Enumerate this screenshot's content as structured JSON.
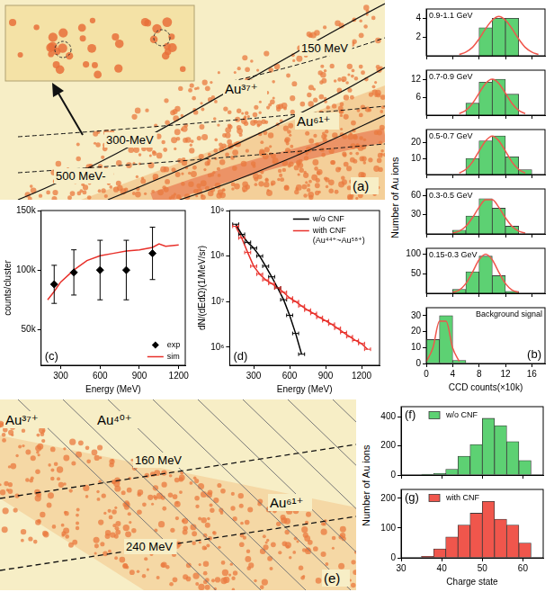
{
  "chart_data": [
    {
      "type": "histogram",
      "title": "0.9-1.1 GeV",
      "bins": [
        8,
        10,
        12,
        14
      ],
      "values": [
        3,
        4,
        4
      ],
      "color": "#5dd173",
      "fit": {
        "x": [
          5,
          6,
          7,
          8,
          9,
          10,
          11,
          12,
          13,
          14,
          15,
          16,
          17
        ],
        "values": [
          0.14,
          0.4,
          0.9,
          1.8,
          2.9,
          3.8,
          4.2,
          3.8,
          2.9,
          1.8,
          0.9,
          0.4,
          0.14
        ],
        "color": "#f0564c"
      },
      "xlim": [
        0,
        18
      ],
      "xticks": [
        0,
        4,
        8,
        12,
        16
      ],
      "ylim": [
        0,
        5
      ],
      "yticks": [
        2,
        4
      ],
      "tick_labels": "y"
    },
    {
      "type": "histogram",
      "title": "0.7-0.9 GeV",
      "bins": [
        6,
        8,
        10,
        12,
        14
      ],
      "values": [
        4,
        11,
        12,
        7
      ],
      "color": "#5dd173",
      "fit": {
        "x": [
          5,
          6,
          7,
          8,
          9,
          10,
          11,
          12,
          13,
          14,
          15
        ],
        "values": [
          0.5,
          1.6,
          3.9,
          7.3,
          10.6,
          12,
          10.6,
          7.3,
          3.9,
          1.6,
          0.5
        ],
        "color": "#f0564c"
      },
      "xlim": [
        0,
        18
      ],
      "xticks": [
        0,
        4,
        8,
        12,
        16
      ],
      "ylim": [
        0,
        15
      ],
      "yticks": [
        6,
        12
      ],
      "tick_labels": "y"
    },
    {
      "type": "histogram",
      "title": "0.5-0.7 GeV",
      "bins": [
        6,
        8,
        10,
        12,
        14,
        16
      ],
      "values": [
        10,
        21,
        24,
        11,
        3
      ],
      "color": "#5dd173",
      "fit": {
        "x": [
          5,
          6,
          7,
          8,
          9,
          10,
          11,
          12,
          13,
          14,
          15
        ],
        "values": [
          1,
          3.2,
          7.8,
          14.6,
          21,
          24,
          21,
          14.6,
          7.8,
          3.2,
          1
        ],
        "color": "#f0564c"
      },
      "xlim": [
        0,
        18
      ],
      "xticks": [
        0,
        4,
        8,
        12,
        16
      ],
      "ylim": [
        0,
        28
      ],
      "yticks": [
        10,
        20
      ],
      "tick_labels": "y"
    },
    {
      "type": "histogram",
      "title": "0.3-0.5 GeV",
      "bins": [
        4,
        6,
        8,
        10,
        12,
        14
      ],
      "values": [
        6,
        28,
        55,
        40,
        12
      ],
      "color": "#5dd173",
      "fit": {
        "x": [
          4,
          5,
          6,
          7,
          8,
          9,
          10,
          11,
          12,
          13,
          14,
          15
        ],
        "values": [
          1.2,
          4.4,
          11.9,
          25.2,
          41.5,
          53.3,
          53.3,
          41.5,
          25.2,
          11.9,
          4.4,
          1.2
        ],
        "color": "#f0564c"
      },
      "xlim": [
        0,
        18
      ],
      "xticks": [
        0,
        4,
        8,
        12,
        16
      ],
      "ylim": [
        0,
        70
      ],
      "yticks": [
        30,
        60
      ],
      "tick_labels": "y"
    },
    {
      "type": "histogram",
      "title": "0.15-0.3 GeV",
      "bins": [
        4,
        6,
        8,
        10,
        12,
        14
      ],
      "values": [
        10,
        55,
        95,
        45,
        5
      ],
      "color": "#5dd173",
      "fit": {
        "x": [
          4,
          5,
          6,
          7,
          8,
          9,
          10,
          11,
          12,
          13,
          14
        ],
        "values": [
          2.1,
          8.5,
          25,
          54,
          85.7,
          100,
          85.7,
          54,
          25,
          8.5,
          2.1
        ],
        "color": "#f0564c"
      },
      "xlim": [
        0,
        18
      ],
      "xticks": [
        0,
        4,
        8,
        12,
        16
      ],
      "ylim": [
        0,
        115
      ],
      "yticks": [
        50,
        100
      ],
      "tick_labels": "y"
    },
    {
      "type": "histogram",
      "title": "Background signal",
      "panel_label": "(b)",
      "bins": [
        0,
        2,
        4,
        6
      ],
      "values": [
        15,
        30,
        2
      ],
      "color": "#5dd173",
      "fit": {
        "x": [
          0,
          1,
          2,
          3,
          4,
          5
        ],
        "values": [
          1.3,
          9.7,
          26.5,
          26.5,
          9.7,
          1.3
        ],
        "color": "#f0564c"
      },
      "xlabel": "CCD counts(×10k)",
      "ylabel": "Number of Au ions",
      "xlim": [
        0,
        18
      ],
      "xticks": [
        0,
        4,
        8,
        12,
        16
      ],
      "ylim": [
        0,
        35
      ],
      "yticks": [
        0,
        10,
        20,
        30
      ]
    },
    {
      "type": "scatter",
      "panel_label": "(c)",
      "xlabel": "Energy (MeV)",
      "ylabel": "counts/cluster",
      "xlim": [
        150,
        1250
      ],
      "xticks": [
        300,
        600,
        900,
        1200
      ],
      "ylim": [
        20000,
        150000
      ],
      "yticks": [
        {
          "value": 50000,
          "label": "50k"
        },
        {
          "value": 100000,
          "label": "100k"
        },
        {
          "value": 150000,
          "label": "150k"
        }
      ],
      "legend": "lower right",
      "series": [
        {
          "name": "exp",
          "type": "scatter",
          "marker": "diamond",
          "color": "#000000",
          "x": [
            250,
            400,
            600,
            800,
            1000
          ],
          "values": [
            88000,
            98000,
            100000,
            100000,
            114000
          ],
          "yerr": [
            16000,
            19000,
            25000,
            25000,
            22000
          ]
        },
        {
          "name": "sim",
          "type": "line",
          "color": "#e8302a",
          "x": [
            200,
            250,
            300,
            400,
            500,
            600,
            700,
            800,
            900,
            1000,
            1050,
            1100,
            1200
          ],
          "values": [
            75000,
            82000,
            90000,
            100000,
            108000,
            112000,
            114000,
            116000,
            117000,
            119000,
            122000,
            120000,
            121000
          ]
        }
      ]
    },
    {
      "type": "line",
      "panel_label": "(d)",
      "log": "y",
      "xlabel": "Energy (MeV)",
      "ylabel": "dN/(dEdΩ)(1/MeV/sr)",
      "xlim": [
        100,
        1350
      ],
      "xticks": [
        300,
        600,
        900,
        1200
      ],
      "ylim": [
        400000,
        1000000000.0
      ],
      "yticks": [
        {
          "value": 1000000.0,
          "label": "10⁶"
        },
        {
          "value": 10000000.0,
          "label": "10⁷"
        },
        {
          "value": 100000000.0,
          "label": "10⁸"
        },
        {
          "value": 1000000000.0,
          "label": "10⁹"
        }
      ],
      "legend": "upper right",
      "series": [
        {
          "name": "w/o CNF",
          "color": "#000000",
          "x": [
            150,
            200,
            250,
            300,
            350,
            400,
            450,
            500,
            550,
            600,
            650,
            700
          ],
          "values": [
            500000000.0,
            300000000.0,
            200000000.0,
            150000000.0,
            100000000.0,
            60000000.0,
            35000000.0,
            20000000.0,
            11000000.0,
            5000000.0,
            2000000.0,
            700000.0
          ],
          "xerr": [
            25,
            25,
            25,
            25,
            25,
            25,
            25,
            25,
            25,
            25,
            25,
            25
          ]
        },
        {
          "name": "with CNF (Au⁴⁴⁺~Au⁵⁸⁺)",
          "color": "#e8302a",
          "x": [
            150,
            200,
            250,
            300,
            350,
            400,
            450,
            500,
            550,
            600,
            650,
            700,
            750,
            800,
            850,
            900,
            950,
            1000,
            1050,
            1100,
            1150,
            1200,
            1250
          ],
          "values": [
            450000000.0,
            250000000.0,
            120000000.0,
            60000000.0,
            40000000.0,
            30000000.0,
            25000000.0,
            20000000.0,
            16000000.0,
            12000000.0,
            10000000.0,
            8000000.0,
            6500000.0,
            5500000.0,
            4500000.0,
            3800000.0,
            3200000.0,
            2600000.0,
            2100000.0,
            1700000.0,
            1400000.0,
            1200000.0,
            900000.0
          ],
          "xerr": [
            25,
            25,
            25,
            25,
            25,
            25,
            25,
            25,
            25,
            25,
            25,
            25,
            25,
            25,
            25,
            25,
            25,
            25,
            25,
            25,
            25,
            25,
            25
          ]
        }
      ]
    },
    {
      "type": "histogram",
      "panel_label": "(f)",
      "bins": [
        35,
        38,
        41,
        44,
        47,
        50,
        53,
        56,
        59,
        62
      ],
      "series": [
        {
          "name": "w/o CNF",
          "color": "#5dd173",
          "values": [
            5,
            10,
            40,
            130,
            210,
            390,
            340,
            230,
            100
          ]
        }
      ],
      "legend": "upper left",
      "xlim": [
        30,
        65
      ],
      "xticks": [
        30,
        40,
        50,
        60
      ],
      "ylim": [
        0,
        470
      ],
      "yticks": [
        0,
        200,
        400
      ],
      "tick_labels": "y"
    },
    {
      "type": "histogram",
      "panel_label": "(g)",
      "bins": [
        35,
        38,
        41,
        44,
        47,
        50,
        53,
        56,
        59,
        62
      ],
      "series": [
        {
          "name": "with CNF",
          "color": "#f0564c",
          "values": [
            5,
            30,
            70,
            110,
            150,
            190,
            130,
            110,
            50
          ]
        }
      ],
      "legend": "upper left",
      "xlabel": "Charge state",
      "ylabel": "Number of Au ions",
      "xlim": [
        30,
        65
      ],
      "xticks": [
        30,
        40,
        50,
        60
      ],
      "ylim": [
        0,
        230
      ],
      "yticks": [
        0,
        100,
        200
      ]
    }
  ],
  "images": [
    {
      "panel_label": "(a)",
      "labels": [
        "Au³⁷⁺",
        "150 MeV",
        "300-MeV",
        "500 MeV-",
        "Au⁶¹⁺"
      ]
    },
    {
      "panel_label": "(e)",
      "labels": [
        "Au³⁷⁺",
        "Au⁴⁰⁺",
        "160 MeV",
        "Au⁶¹⁺",
        "240 MeV"
      ]
    }
  ]
}
